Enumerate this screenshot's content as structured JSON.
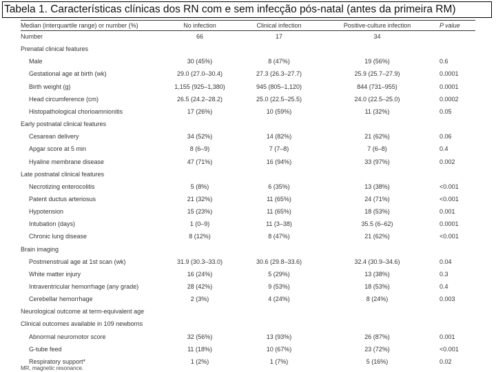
{
  "title": "Tabela 1. Características clínicas dos RN com e sem infecção pós-natal (antes da primeira RM)",
  "header": {
    "col0": "Median (interquartile range) or number (%)",
    "col1": "No infection",
    "col2": "Clinical infection",
    "col3": "Positive-culture infection",
    "col4": "P value"
  },
  "rows": [
    {
      "label": "Number",
      "indent": false,
      "v1": "66",
      "v2": "17",
      "v3": "34",
      "p": ""
    },
    {
      "label": "Prenatal clinical features",
      "indent": false,
      "v1": "",
      "v2": "",
      "v3": "",
      "p": ""
    },
    {
      "label": "Male",
      "indent": true,
      "v1": "30 (45%)",
      "v2": "8 (47%)",
      "v3": "19 (56%)",
      "p": "0.6"
    },
    {
      "label": "Gestational age at birth (wk)",
      "indent": true,
      "v1": "29.0 (27.0–30.4)",
      "v2": "27.3 (26.3–27.7)",
      "v3": "25.9 (25.7–27.9)",
      "p": "0.0001"
    },
    {
      "label": "Birth weight (g)",
      "indent": true,
      "v1": "1,155 (925–1,380)",
      "v2": "945 (805–1,120)",
      "v3": "844 (731–955)",
      "p": "0.0001"
    },
    {
      "label": "Head circumference (cm)",
      "indent": true,
      "v1": "26.5 (24.2–28.2)",
      "v2": "25.0 (22.5–25.5)",
      "v3": "24.0 (22.5–25.0)",
      "p": "0.0002"
    },
    {
      "label": "Histopathological chorioamnionitis",
      "indent": true,
      "v1": "17 (26%)",
      "v2": "10 (59%)",
      "v3": "11 (32%)",
      "p": "0.05"
    },
    {
      "label": "Early postnatal clinical features",
      "indent": false,
      "v1": "",
      "v2": "",
      "v3": "",
      "p": ""
    },
    {
      "label": "Cesarean delivery",
      "indent": true,
      "v1": "34 (52%)",
      "v2": "14 (82%)",
      "v3": "21 (62%)",
      "p": "0.06"
    },
    {
      "label": "Apgar score at 5 min",
      "indent": true,
      "v1": "8 (6–9)",
      "v2": "7 (7–8)",
      "v3": "7 (6–8)",
      "p": "0.4"
    },
    {
      "label": "Hyaline membrane disease",
      "indent": true,
      "v1": "47 (71%)",
      "v2": "16 (94%)",
      "v3": "33 (97%)",
      "p": "0.002"
    },
    {
      "label": "Late postnatal clinical features",
      "indent": false,
      "v1": "",
      "v2": "",
      "v3": "",
      "p": ""
    },
    {
      "label": "Necrotizing enterocolitis",
      "indent": true,
      "v1": "5 (8%)",
      "v2": "6 (35%)",
      "v3": "13 (38%)",
      "p": "<0.001"
    },
    {
      "label": "Patent ductus arteriosus",
      "indent": true,
      "v1": "21 (32%)",
      "v2": "11 (65%)",
      "v3": "24 (71%)",
      "p": "<0.001"
    },
    {
      "label": "Hypotension",
      "indent": true,
      "v1": "15 (23%)",
      "v2": "11 (65%)",
      "v3": "18 (53%)",
      "p": "0.001"
    },
    {
      "label": "Intubation (days)",
      "indent": true,
      "v1": "1 (0–9)",
      "v2": "11 (3–38)",
      "v3": "35.5 (6–62)",
      "p": "0.0001"
    },
    {
      "label": "Chronic lung disease",
      "indent": true,
      "v1": "8 (12%)",
      "v2": "8 (47%)",
      "v3": "21 (62%)",
      "p": "<0.001"
    },
    {
      "label": "Brain imaging",
      "indent": false,
      "v1": "",
      "v2": "",
      "v3": "",
      "p": ""
    },
    {
      "label": "Postmenstrual age at 1st scan (wk)",
      "indent": true,
      "v1": "31.9 (30.3–33.0)",
      "v2": "30.6 (29.8–33.6)",
      "v3": "32.4 (30.9–34.6)",
      "p": "0.04"
    },
    {
      "label": "White matter injury",
      "indent": true,
      "v1": "16 (24%)",
      "v2": "5 (29%)",
      "v3": "13 (38%)",
      "p": "0.3"
    },
    {
      "label": "Intraventricular hemorrhage (any grade)",
      "indent": true,
      "v1": "28 (42%)",
      "v2": "9 (53%)",
      "v3": "18 (53%)",
      "p": "0.4"
    },
    {
      "label": "Cerebellar hemorrhage",
      "indent": true,
      "v1": "2 (3%)",
      "v2": "4 (24%)",
      "v3": "8 (24%)",
      "p": "0.003"
    },
    {
      "label": "Neurological outcome at term-equivalent age",
      "indent": false,
      "v1": "",
      "v2": "",
      "v3": "",
      "p": ""
    },
    {
      "label": "Clinical outcomes available in 109 newborns",
      "indent": false,
      "v1": "",
      "v2": "",
      "v3": "",
      "p": ""
    },
    {
      "label": "Abnormal neuromotor score",
      "indent": true,
      "v1": "32 (56%)",
      "v2": "13 (93%)",
      "v3": "26 (87%)",
      "p": "0.001"
    },
    {
      "label": "G-tube feed",
      "indent": true,
      "v1": "11 (18%)",
      "v2": "10 (67%)",
      "v3": "23 (72%)",
      "p": "<0.001"
    },
    {
      "label": "Respiratory support*",
      "indent": true,
      "v1": "1 (2%)",
      "v2": "1 (7%)",
      "v3": "5 (16%)",
      "p": "0.02"
    }
  ],
  "footnote": "MR, magnetic resonance."
}
